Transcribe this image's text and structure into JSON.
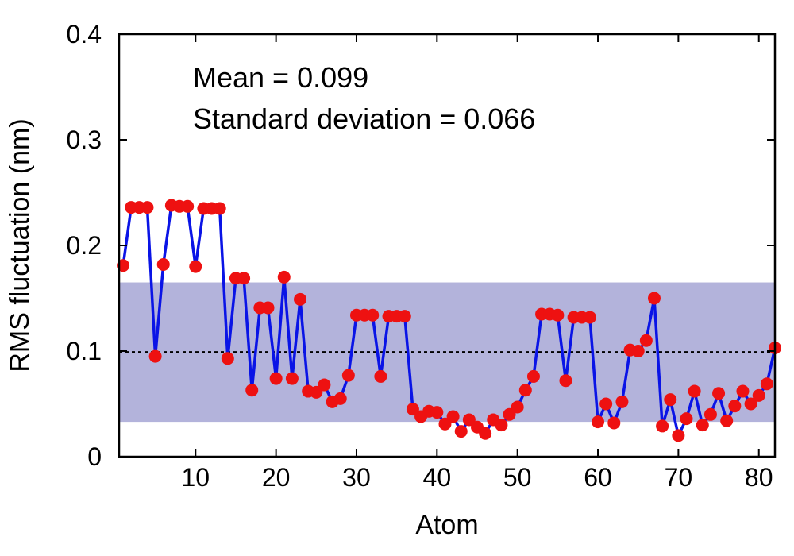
{
  "chart_data": {
    "type": "line",
    "title": "",
    "xlabel": "Atom",
    "ylabel": "RMS fluctuation (nm)",
    "xlim": [
      0.5,
      82
    ],
    "ylim": [
      0,
      0.4
    ],
    "xticks": [
      10,
      20,
      30,
      40,
      50,
      60,
      70,
      80
    ],
    "xtick_labels": [
      "10",
      "20",
      "30",
      "40",
      "50",
      "60",
      "70",
      "80"
    ],
    "yticks": [
      0,
      0.1,
      0.2,
      0.3,
      0.4
    ],
    "ytick_labels": [
      "0",
      "0.1",
      "0.2",
      "0.3",
      "0.4"
    ],
    "annotations": [
      "Mean = 0.099",
      "Standard deviation = 0.066"
    ],
    "mean": 0.099,
    "std_band": [
      0.033,
      0.165
    ],
    "grid": false,
    "colors": {
      "line": "#0a14e6",
      "marker": "#ee1111",
      "band": "#b3b3db",
      "mean_line": "#000000"
    },
    "series": [
      {
        "x": [
          1,
          2,
          3,
          4,
          5,
          6,
          7,
          8,
          9,
          10,
          11,
          12,
          13,
          14,
          15,
          16,
          17,
          18,
          19,
          20,
          21,
          22,
          23,
          24,
          25,
          26,
          27,
          28,
          29,
          30,
          31,
          32,
          33,
          34,
          35,
          36,
          37,
          38,
          39,
          40,
          41,
          42,
          43,
          44,
          45,
          46,
          47,
          48,
          49,
          50,
          51,
          52,
          53,
          54,
          55,
          56,
          57,
          58,
          59,
          60,
          61,
          62,
          63,
          64,
          65,
          66,
          67,
          68,
          69,
          70,
          71,
          72,
          73,
          74,
          75,
          76,
          77,
          78,
          79,
          80,
          81,
          82
        ],
        "values": [
          0.181,
          0.236,
          0.236,
          0.236,
          0.095,
          0.182,
          0.238,
          0.237,
          0.237,
          0.18,
          0.235,
          0.235,
          0.235,
          0.093,
          0.169,
          0.169,
          0.063,
          0.141,
          0.141,
          0.074,
          0.17,
          0.074,
          0.149,
          0.062,
          0.061,
          0.068,
          0.052,
          0.055,
          0.077,
          0.134,
          0.134,
          0.134,
          0.076,
          0.133,
          0.133,
          0.133,
          0.045,
          0.038,
          0.043,
          0.042,
          0.031,
          0.038,
          0.024,
          0.035,
          0.028,
          0.022,
          0.035,
          0.03,
          0.04,
          0.047,
          0.063,
          0.076,
          0.135,
          0.135,
          0.134,
          0.072,
          0.132,
          0.132,
          0.132,
          0.033,
          0.05,
          0.032,
          0.052,
          0.101,
          0.1,
          0.11,
          0.15,
          0.029,
          0.054,
          0.02,
          0.036,
          0.062,
          0.03,
          0.04,
          0.06,
          0.034,
          0.048,
          0.062,
          0.05,
          0.058,
          0.069,
          0.103
        ]
      }
    ]
  }
}
